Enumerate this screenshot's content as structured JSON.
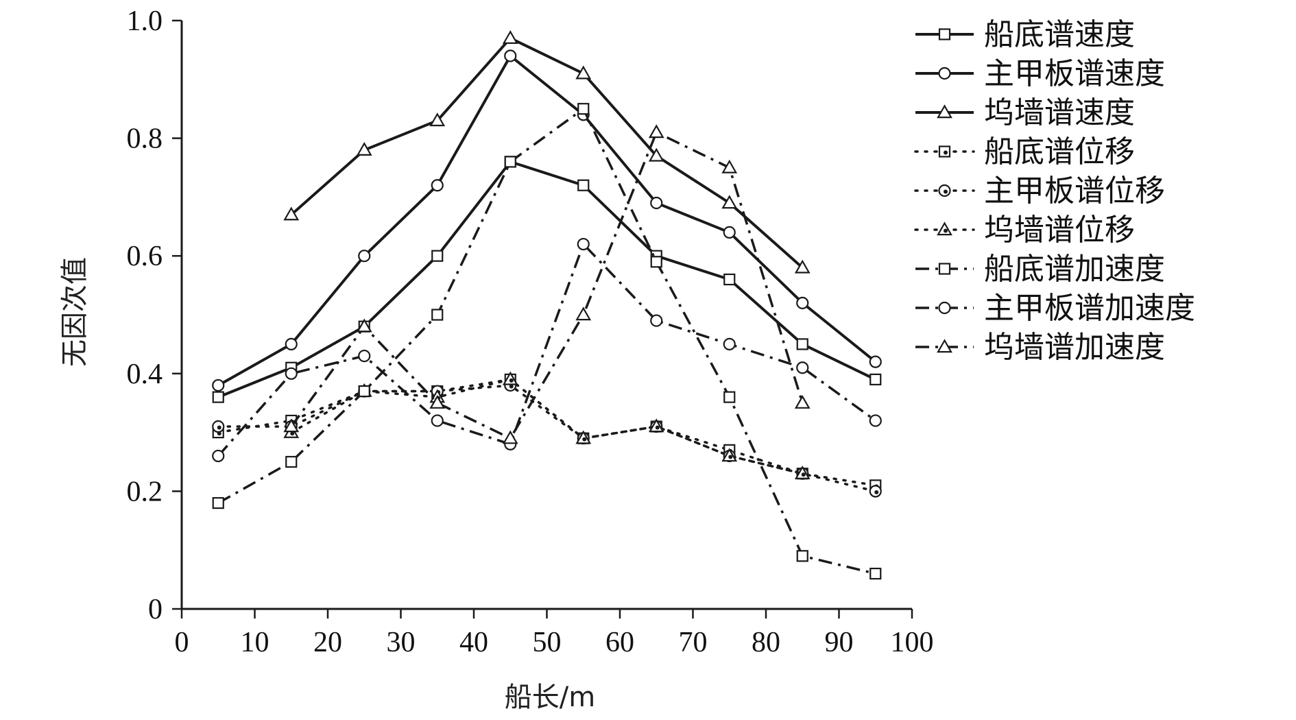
{
  "chart_data": {
    "type": "line",
    "xlabel": "船长/m",
    "ylabel": "无因次值",
    "xlim": [
      0,
      100
    ],
    "ylim": [
      0,
      1.0
    ],
    "x_ticks": [
      0,
      10,
      20,
      30,
      40,
      50,
      60,
      70,
      80,
      90,
      100
    ],
    "y_ticks": [
      0,
      0.2,
      0.4,
      0.6,
      0.8,
      1.0
    ],
    "y_tick_labels": [
      "0",
      "0.2",
      "0.4",
      "0.6",
      "0.8",
      "1.0"
    ],
    "grid": false,
    "legend_position": "right",
    "series": [
      {
        "name": "船底谱速度",
        "marker": "square",
        "line": "solid",
        "x": [
          5,
          15,
          25,
          35,
          45,
          55,
          65,
          75,
          85,
          95
        ],
        "y": [
          0.36,
          0.41,
          0.48,
          0.6,
          0.76,
          0.72,
          0.6,
          0.56,
          0.45,
          0.39
        ]
      },
      {
        "name": "主甲板谱速度",
        "marker": "circle",
        "line": "solid",
        "x": [
          5,
          15,
          25,
          35,
          45,
          55,
          65,
          75,
          85,
          95
        ],
        "y": [
          0.38,
          0.45,
          0.6,
          0.72,
          0.94,
          0.84,
          0.69,
          0.64,
          0.52,
          0.42
        ]
      },
      {
        "name": "坞墙谱速度",
        "marker": "triangle",
        "line": "solid",
        "x": [
          15,
          25,
          35,
          45,
          55,
          65,
          75,
          85
        ],
        "y": [
          0.67,
          0.78,
          0.83,
          0.97,
          0.91,
          0.77,
          0.69,
          0.58
        ]
      },
      {
        "name": "船底谱位移",
        "marker": "square-dot",
        "line": "dotted",
        "x": [
          5,
          15,
          25,
          35,
          45,
          55,
          65,
          75,
          85,
          95
        ],
        "y": [
          0.3,
          0.32,
          0.37,
          0.37,
          0.39,
          0.29,
          0.31,
          0.27,
          0.23,
          0.21
        ]
      },
      {
        "name": "主甲板谱位移",
        "marker": "circle-dot",
        "line": "dotted",
        "x": [
          5,
          15,
          25,
          35,
          45,
          55,
          65,
          75,
          85,
          95
        ],
        "y": [
          0.31,
          0.31,
          0.37,
          0.37,
          0.38,
          0.29,
          0.31,
          0.26,
          0.23,
          0.2
        ]
      },
      {
        "name": "坞墙谱位移",
        "marker": "triangle-dot",
        "line": "dotted",
        "x": [
          15,
          25,
          35,
          45,
          55,
          65,
          75,
          85
        ],
        "y": [
          0.3,
          0.37,
          0.36,
          0.39,
          0.29,
          0.31,
          0.26,
          0.23
        ]
      },
      {
        "name": "船底谱加速度",
        "marker": "square",
        "line": "dashdot",
        "x": [
          5,
          15,
          25,
          35,
          45,
          55,
          65,
          75,
          85,
          95
        ],
        "y": [
          0.18,
          0.25,
          0.37,
          0.5,
          0.76,
          0.85,
          0.59,
          0.36,
          0.09,
          0.06
        ]
      },
      {
        "name": "主甲板谱加速度",
        "marker": "circle",
        "line": "dashdot",
        "x": [
          5,
          15,
          25,
          35,
          45,
          55,
          65,
          75,
          85,
          95
        ],
        "y": [
          0.26,
          0.4,
          0.43,
          0.32,
          0.28,
          0.62,
          0.49,
          0.45,
          0.41,
          0.32
        ]
      },
      {
        "name": "坞墙谱加速度",
        "marker": "triangle",
        "line": "dashdot",
        "x": [
          15,
          25,
          35,
          45,
          55,
          65,
          75,
          85
        ],
        "y": [
          0.31,
          0.48,
          0.35,
          0.29,
          0.5,
          0.81,
          0.75,
          0.35
        ]
      }
    ]
  },
  "colors": {
    "ink": "#1a1a1a",
    "background": "#ffffff"
  }
}
